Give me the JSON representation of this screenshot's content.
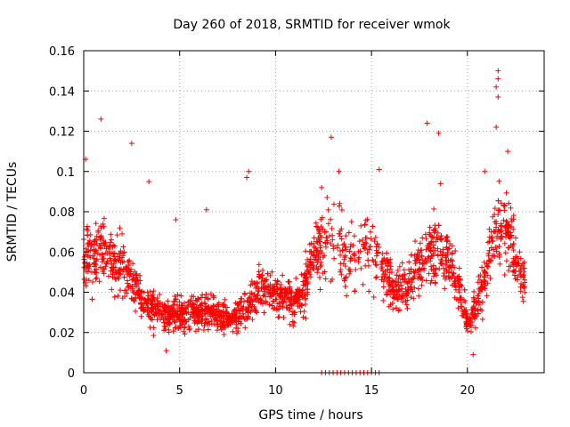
{
  "chart_data": {
    "type": "scatter",
    "title": "Day 260 of 2018, SRMTID for receiver wmok",
    "xlabel": "GPS time / hours",
    "ylabel": "SRMTID / TECUs",
    "xlim": [
      0,
      24
    ],
    "ylim": [
      0,
      0.16
    ],
    "xticks": [
      0,
      5,
      10,
      15,
      20
    ],
    "yticks": [
      0,
      0.02,
      0.04,
      0.06,
      0.08,
      0.1,
      0.12,
      0.14,
      0.16
    ],
    "xtick_labels": [
      "0",
      "5",
      "10",
      "15",
      "20"
    ],
    "ytick_labels": [
      "0",
      "0.02",
      "0.04",
      "0.06",
      "0.08",
      "0.1",
      "0.12",
      "0.14",
      "0.16"
    ],
    "grid": true,
    "marker": "+",
    "color": "#ff0000",
    "series": [
      {
        "name": "SRMTID",
        "trend": [
          [
            0.0,
            0.06
          ],
          [
            0.5,
            0.056
          ],
          [
            1.0,
            0.061
          ],
          [
            1.5,
            0.058
          ],
          [
            2.0,
            0.052
          ],
          [
            2.5,
            0.048
          ],
          [
            3.0,
            0.035
          ],
          [
            3.5,
            0.032
          ],
          [
            4.0,
            0.03
          ],
          [
            4.5,
            0.028
          ],
          [
            5.0,
            0.03
          ],
          [
            5.5,
            0.029
          ],
          [
            6.0,
            0.03
          ],
          [
            6.5,
            0.032
          ],
          [
            7.0,
            0.028
          ],
          [
            7.5,
            0.027
          ],
          [
            8.0,
            0.028
          ],
          [
            8.5,
            0.032
          ],
          [
            9.0,
            0.04
          ],
          [
            9.5,
            0.042
          ],
          [
            10.0,
            0.04
          ],
          [
            10.5,
            0.037
          ],
          [
            11.0,
            0.036
          ],
          [
            11.5,
            0.04
          ],
          [
            12.0,
            0.06
          ],
          [
            12.5,
            0.066
          ],
          [
            13.0,
            0.063
          ],
          [
            13.5,
            0.06
          ],
          [
            14.0,
            0.058
          ],
          [
            14.5,
            0.06
          ],
          [
            15.0,
            0.062
          ],
          [
            15.5,
            0.058
          ],
          [
            16.0,
            0.045
          ],
          [
            16.5,
            0.042
          ],
          [
            17.0,
            0.043
          ],
          [
            17.5,
            0.055
          ],
          [
            18.0,
            0.062
          ],
          [
            18.5,
            0.06
          ],
          [
            19.0,
            0.055
          ],
          [
            19.5,
            0.045
          ],
          [
            20.0,
            0.025
          ],
          [
            20.5,
            0.035
          ],
          [
            21.0,
            0.05
          ],
          [
            21.5,
            0.072
          ],
          [
            22.0,
            0.075
          ],
          [
            22.5,
            0.055
          ],
          [
            23.0,
            0.045
          ]
        ],
        "highlights": [
          [
            0.9,
            0.126
          ],
          [
            2.5,
            0.114
          ],
          [
            3.4,
            0.095
          ],
          [
            4.8,
            0.076
          ],
          [
            6.4,
            0.081
          ],
          [
            8.6,
            0.1
          ],
          [
            8.5,
            0.097
          ],
          [
            12.4,
            0.092
          ],
          [
            12.9,
            0.117
          ],
          [
            13.3,
            0.1
          ],
          [
            15.4,
            0.101
          ],
          [
            17.9,
            0.124
          ],
          [
            18.5,
            0.119
          ],
          [
            18.6,
            0.094
          ],
          [
            20.9,
            0.1
          ],
          [
            21.6,
            0.15
          ],
          [
            21.6,
            0.146
          ],
          [
            21.5,
            0.142
          ],
          [
            21.6,
            0.137
          ],
          [
            21.5,
            0.122
          ],
          [
            22.1,
            0.11
          ],
          [
            20.3,
            0.009
          ],
          [
            4.3,
            0.011
          ],
          [
            0.1,
            0.106
          ]
        ],
        "zero_points": [
          12.4,
          12.6,
          12.8,
          13.0,
          13.2,
          13.4,
          13.6,
          13.8,
          14.0,
          14.2,
          14.4,
          14.6,
          14.8,
          15.0,
          15.2,
          15.4
        ],
        "gap_hours": [
          12.4,
          15.5
        ]
      }
    ]
  }
}
